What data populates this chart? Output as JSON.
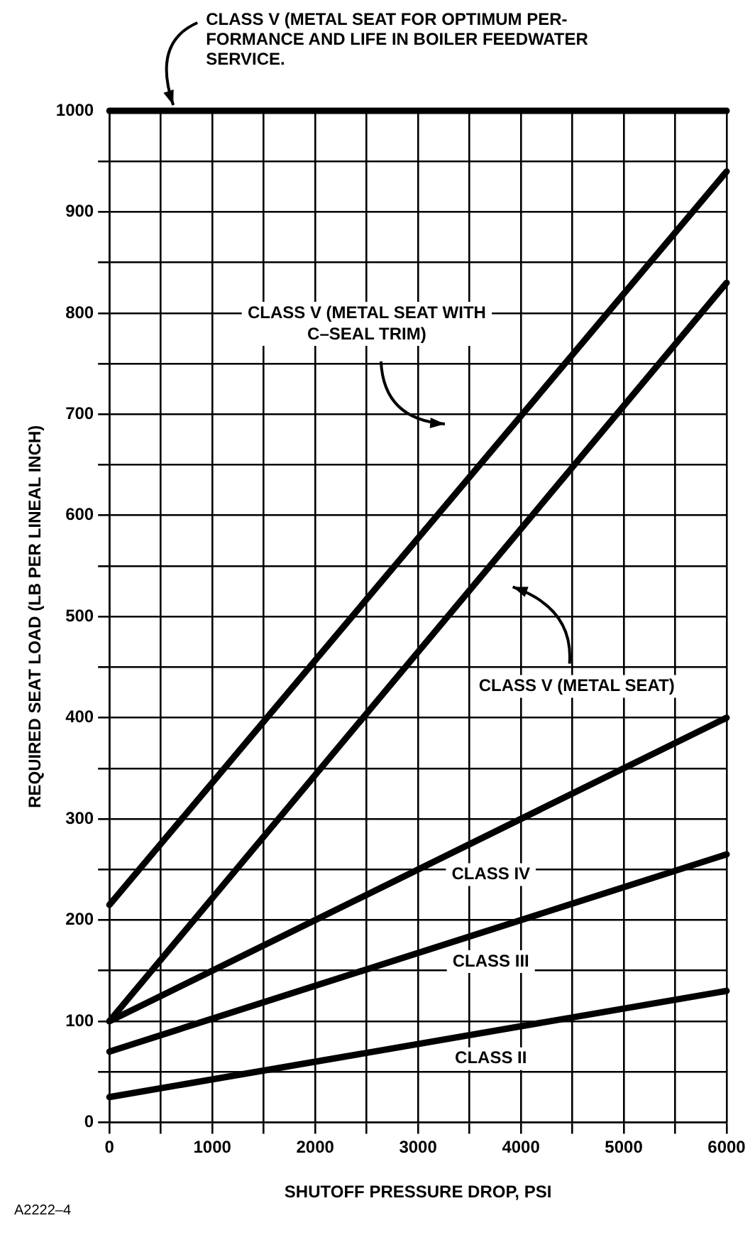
{
  "chart_data": {
    "type": "line",
    "xlabel": "SHUTOFF PRESSURE DROP, PSI",
    "ylabel": "REQUIRED SEAT LOAD (LB PER LINEAL INCH)",
    "xlim": [
      0,
      6000
    ],
    "ylim": [
      0,
      1000
    ],
    "xticks": [
      0,
      {
        "value": 500,
        "label": null
      },
      1000,
      {
        "value": 1500,
        "label": null
      },
      2000,
      {
        "value": 2500,
        "label": null
      },
      3000,
      {
        "value": 3500,
        "label": null
      },
      4000,
      {
        "value": 4500,
        "label": null
      },
      5000,
      {
        "value": 5500,
        "label": null
      },
      6000
    ],
    "yticks": [
      0,
      {
        "value": 50,
        "label": null
      },
      100,
      {
        "value": 150,
        "label": null
      },
      200,
      {
        "value": 250,
        "label": null
      },
      300,
      {
        "value": 350,
        "label": null
      },
      400,
      {
        "value": 450,
        "label": null
      },
      500,
      {
        "value": 550,
        "label": null
      },
      600,
      {
        "value": 650,
        "label": null
      },
      700,
      {
        "value": 750,
        "label": null
      },
      800,
      {
        "value": 850,
        "label": null
      },
      900,
      {
        "value": 950,
        "label": null
      },
      1000
    ],
    "grid": true,
    "legend": false,
    "marker": "none",
    "line_style": "solid",
    "x": [
      0,
      6000
    ],
    "series": [
      {
        "color": "#000000",
        "values": [
          1000,
          1000
        ]
      },
      {
        "color": "#000000",
        "values": [
          215,
          940
        ]
      },
      {
        "color": "#000000",
        "values": [
          100,
          830
        ]
      },
      {
        "color": "#000000",
        "values": [
          100,
          400
        ]
      },
      {
        "color": "#000000",
        "values": [
          70,
          265
        ]
      },
      {
        "color": "#000000",
        "values": [
          25,
          130
        ]
      }
    ],
    "annotations": [
      "CLASS V (METAL SEAT FOR OPTIMUM PER-\nFORMANCE AND LIFE IN BOILER FEEDWATER\nSERVICE.",
      "CLASS V (METAL SEAT WITH\nC–SEAL TRIM)",
      "CLASS V (METAL SEAT)",
      "CLASS IV",
      "CLASS III",
      "CLASS II",
      "A2222–4"
    ]
  }
}
